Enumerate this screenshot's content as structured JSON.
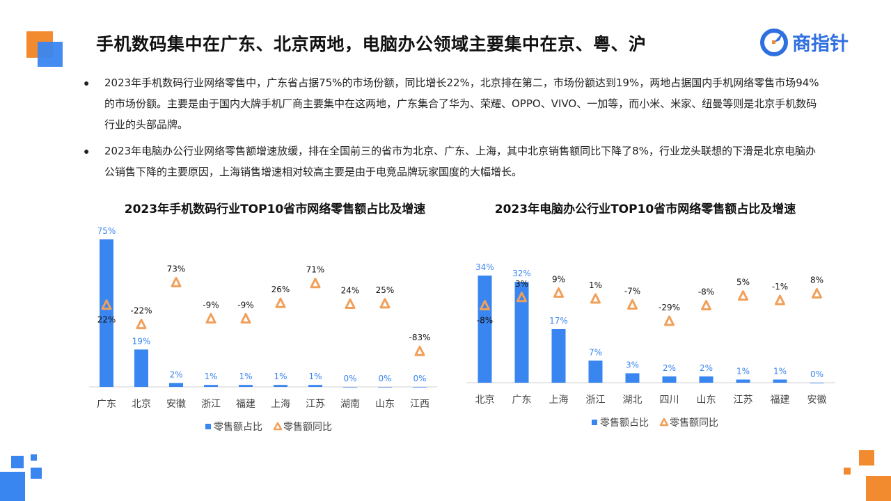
{
  "page": {
    "title": "手机数码集中在广东、北京两地，电脑办公领域主要集中在京、粤、沪",
    "logo_text": "商指针",
    "logo_icon": "compass-needle-icon",
    "bullets": [
      "2023年手机数码行业网络零售中，广东省占据75%的市场份额，同比增长22%，北京排在第二，市场份额达到19%，两地占据国内手机网络零售市场94%的市场份额。主要是由于国内大牌手机厂商主要集中在这两地，广东集合了华为、荣耀、OPPO、VIVO、一加等，而小米、米家、纽曼等则是北京手机数码行业的头部品牌。",
      "2023年电脑办公行业网络零售额增速放缓，排在全国前三的省市为北京、广东、上海，其中北京销售额同比下降了8%，行业龙头联想的下滑是北京电脑办公销售下降的主要原因，上海销售增速相对较高主要是由于电竞品牌玩家国度的大幅增长。"
    ],
    "colors": {
      "bar": "#3a86f0",
      "marker": "#f0a05a",
      "accent_orange": "#f28a30",
      "accent_blue": "#3a86f0"
    }
  },
  "chart_data": [
    {
      "type": "bar",
      "title": "2023年手机数码行业TOP10省市网络零售额占比及增速",
      "categories": [
        "广东",
        "北京",
        "安徽",
        "浙江",
        "福建",
        "上海",
        "江苏",
        "湖南",
        "山东",
        "江西"
      ],
      "series": [
        {
          "name": "零售额占比",
          "kind": "bar",
          "values": [
            75,
            19,
            2,
            1,
            1,
            1,
            1,
            0,
            0,
            0
          ],
          "labels": [
            "75%",
            "19%",
            "2%",
            "1%",
            "1%",
            "1%",
            "1%",
            "0%",
            "0%",
            "0%"
          ]
        },
        {
          "name": "零售额同比",
          "kind": "marker",
          "values": [
            22,
            -22,
            73,
            -9,
            -9,
            26,
            71,
            24,
            25,
            -83
          ],
          "labels": [
            "22%",
            "-22%",
            "73%",
            "-9%",
            "-9%",
            "26%",
            "71%",
            "24%",
            "25%",
            "-83%"
          ]
        }
      ],
      "bar_range": [
        0,
        75
      ],
      "marker_range": [
        -100,
        80
      ],
      "legend_position": "bottom"
    },
    {
      "type": "bar",
      "title": "2023年电脑办公行业TOP10省市网络零售额占比及增速",
      "categories": [
        "北京",
        "广东",
        "上海",
        "浙江",
        "湖北",
        "四川",
        "山东",
        "江苏",
        "福建",
        "安徽"
      ],
      "series": [
        {
          "name": "零售额占比",
          "kind": "bar",
          "values": [
            34,
            32,
            17,
            7,
            3,
            2,
            2,
            1,
            1,
            0
          ],
          "labels": [
            "34%",
            "32%",
            "17%",
            "7%",
            "3%",
            "2%",
            "2%",
            "1%",
            "1%",
            "0%"
          ]
        },
        {
          "name": "零售额同比",
          "kind": "marker",
          "values": [
            -8,
            3,
            9,
            1,
            -7,
            -29,
            -8,
            5,
            -1,
            8
          ],
          "labels": [
            "-8%",
            "3%",
            "9%",
            "1%",
            "-7%",
            "-29%",
            "-8%",
            "5%",
            "-1%",
            "8%"
          ]
        }
      ],
      "bar_range": [
        0,
        34
      ],
      "marker_range": [
        -60,
        15
      ],
      "legend_position": "bottom"
    }
  ]
}
